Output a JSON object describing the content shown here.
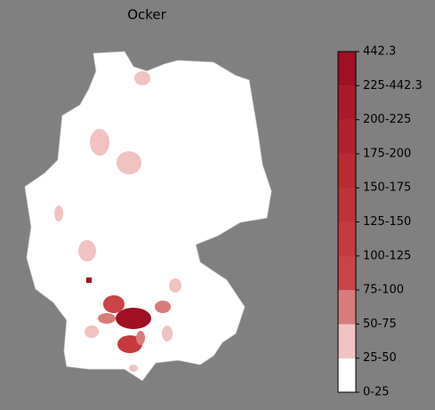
{
  "title": "Ocker",
  "colorbar": {
    "labels": [
      "0-25",
      "25-50",
      "50-75",
      "75-100",
      "100-125",
      "125-150",
      "150-175",
      "175-200",
      "200-225",
      "225-442.3",
      "442.3"
    ],
    "colors": [
      "#ffffff",
      "#f0c2c2",
      "#d97b7b",
      "#c94446",
      "#c43a3e",
      "#bf3238",
      "#b92a33",
      "#b2222e",
      "#aa1a29",
      "#a00f22"
    ]
  }
}
